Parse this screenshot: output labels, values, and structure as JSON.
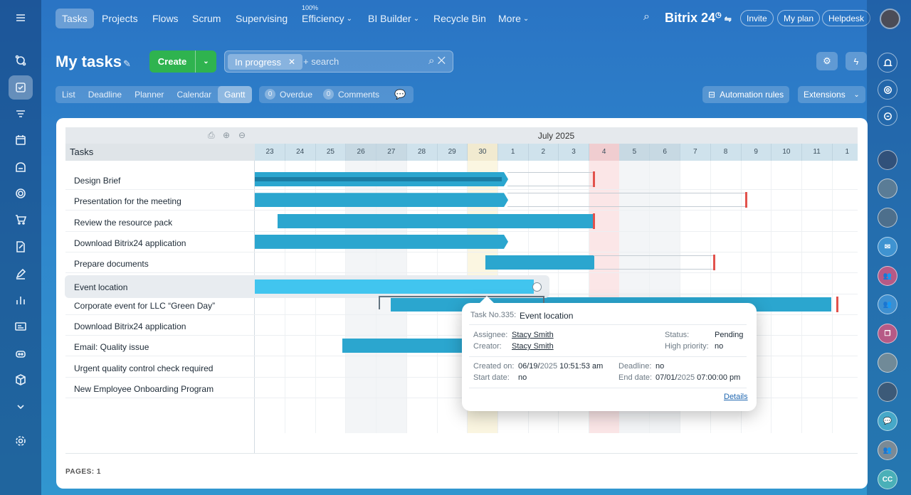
{
  "topnav": {
    "items": [
      "Tasks",
      "Projects",
      "Flows",
      "Scrum",
      "Supervising",
      "Efficiency",
      "BI Builder",
      "Recycle Bin",
      "More"
    ],
    "efficiency_badge": "100%",
    "brand": "Bitrix 24",
    "invite": "Invite",
    "my_plan": "My plan",
    "helpdesk": "Helpdesk"
  },
  "page": {
    "title": "My tasks",
    "create_label": "Create",
    "filter_chip": "In progress",
    "search_placeholder": "+ search"
  },
  "view_tabs": [
    "List",
    "Deadline",
    "Planner",
    "Calendar",
    "Gantt"
  ],
  "counters": {
    "overdue_count": "0",
    "overdue_label": "Overdue",
    "comments_count": "0",
    "comments_label": "Comments"
  },
  "right_buttons": {
    "automation": "Automation rules",
    "extensions": "Extensions"
  },
  "gantt": {
    "tasks_header": "Tasks",
    "month": "July 2025",
    "days": [
      "23",
      "24",
      "25",
      "26",
      "27",
      "28",
      "29",
      "30",
      "1",
      "2",
      "3",
      "4",
      "5",
      "6",
      "7",
      "8",
      "9",
      "10",
      "11",
      "1"
    ],
    "tasks": [
      "Design Brief",
      "Presentation for the meeting",
      "Review the resource pack",
      "Download Bitrix24 application",
      "Prepare documents",
      "Event location",
      "Corporate event for LLC “Green Day”",
      "Download Bitrix24 application",
      "Email: Quality issue",
      "Urgent quality control check required",
      "New Employee Onboarding Program"
    ]
  },
  "popup": {
    "task_no": "Task No.335:",
    "task_name": "Event location",
    "assignee_label": "Assignee:",
    "assignee": "Stacy Smith",
    "creator_label": "Creator:",
    "creator": "Stacy Smith",
    "status_label": "Status:",
    "status": "Pending",
    "priority_label": "High priority:",
    "priority": "no",
    "created_label": "Created on:",
    "created_md": "06/19/",
    "created_y": "2025",
    "created_time": "10:51:53 am",
    "start_label": "Start date:",
    "start": "no",
    "deadline_label": "Deadline:",
    "deadline": "no",
    "end_label": "End date:",
    "end_md": "07/01/",
    "end_y": "2025",
    "end_time": "07:00:00 pm",
    "details": "Details"
  },
  "footer": {
    "pages_label": "PAGES:",
    "pages_value": "1"
  },
  "right_rail": {
    "cc_label": "CC"
  }
}
